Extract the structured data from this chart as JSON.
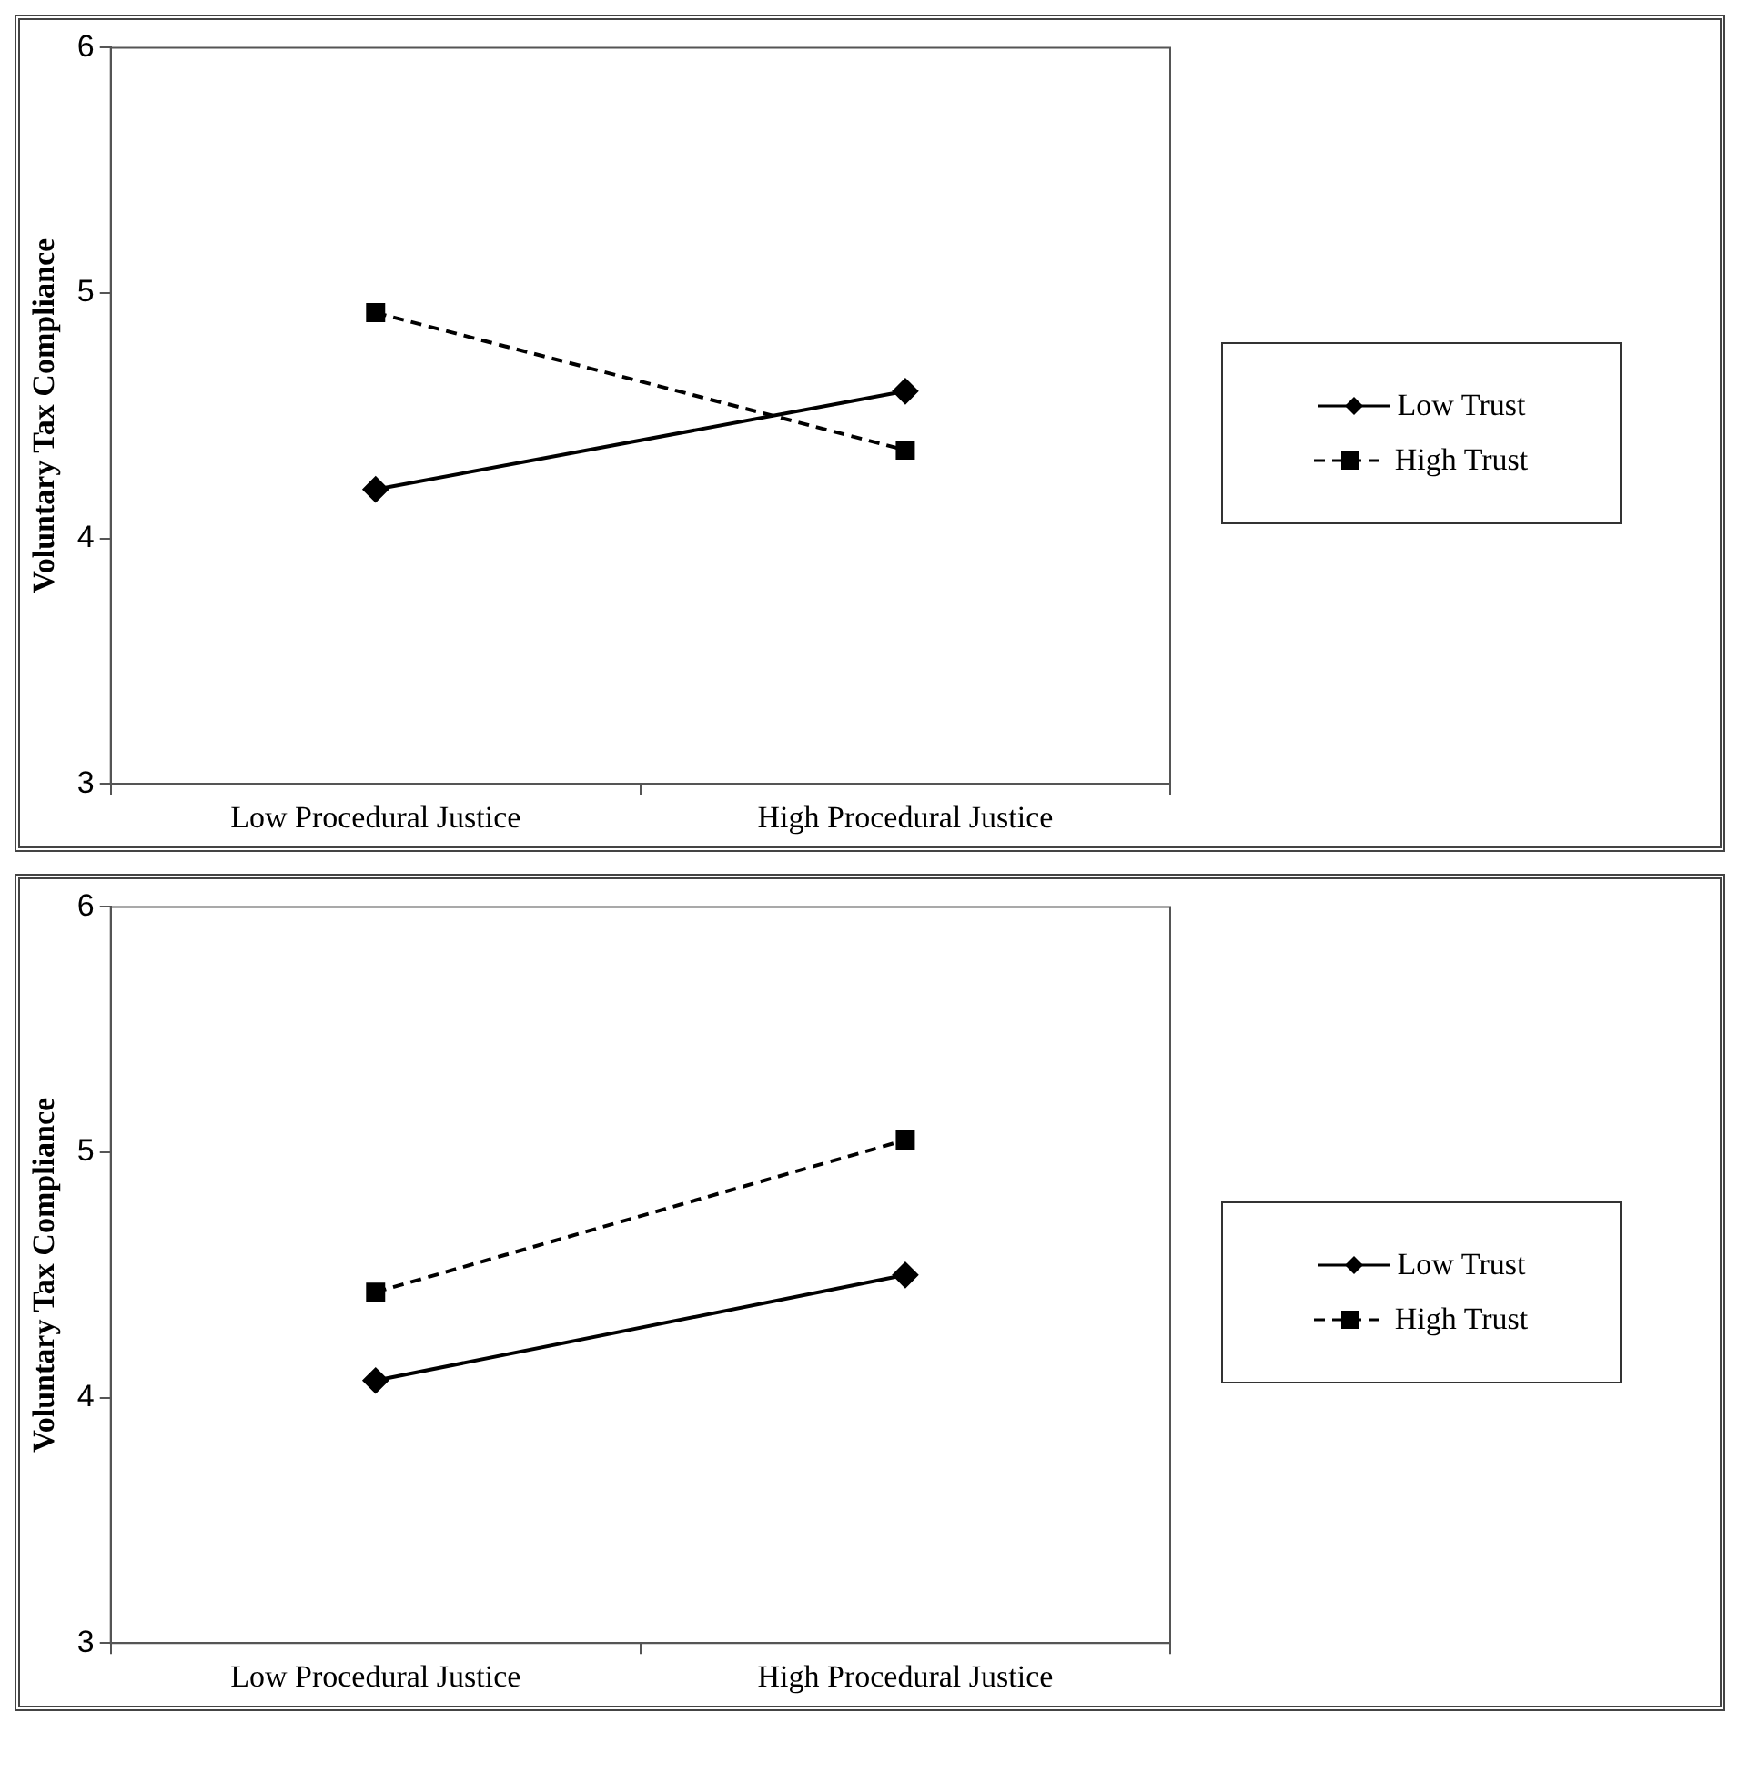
{
  "chart_data": [
    {
      "type": "line",
      "ylabel": "Voluntary Tax Compliance",
      "categories": [
        "Low Procedural Justice",
        "High Procedural Justice"
      ],
      "ylim": [
        3,
        6
      ],
      "yticks": [
        3,
        4,
        5,
        6
      ],
      "grid": false,
      "legend": "right",
      "series": [
        {
          "name": "Low Trust",
          "color": "#000000",
          "values": [
            4.2,
            4.6
          ],
          "marker": "diamond",
          "line_style": "solid"
        },
        {
          "name": "High Trust",
          "color": "#000000",
          "values": [
            4.92,
            4.36
          ],
          "marker": "square",
          "line_style": "dashed"
        }
      ]
    },
    {
      "type": "line",
      "ylabel": "Voluntary Tax Compliance",
      "categories": [
        "Low Procedural Justice",
        "High Procedural Justice"
      ],
      "ylim": [
        3,
        6
      ],
      "yticks": [
        3,
        4,
        5,
        6
      ],
      "grid": false,
      "legend": "right",
      "series": [
        {
          "name": "Low Trust",
          "color": "#000000",
          "values": [
            4.07,
            4.5
          ],
          "marker": "diamond",
          "line_style": "solid"
        },
        {
          "name": "High Trust",
          "color": "#000000",
          "values": [
            4.43,
            5.05
          ],
          "marker": "square",
          "line_style": "dashed"
        }
      ]
    }
  ]
}
